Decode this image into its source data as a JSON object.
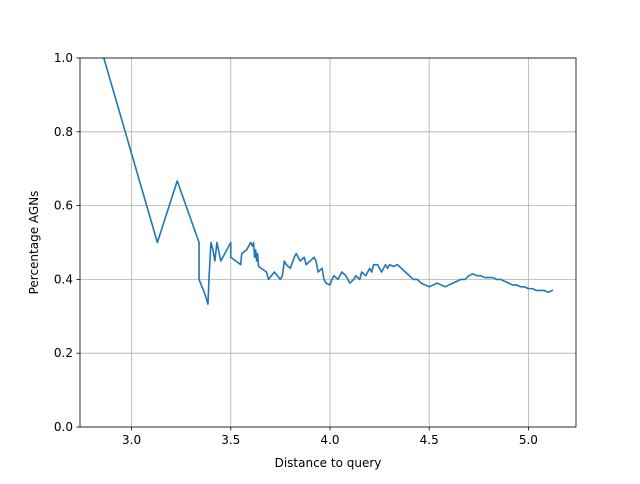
{
  "chart_data": {
    "type": "line",
    "title": "",
    "xlabel": "Distance to query",
    "ylabel": "Percentage AGNs",
    "xlim": [
      2.74,
      5.24
    ],
    "ylim": [
      0.0,
      1.0
    ],
    "grid": true,
    "xticks": [
      3.0,
      3.5,
      4.0,
      4.5,
      5.0
    ],
    "xtick_labels": [
      "3.0",
      "3.5",
      "4.0",
      "4.5",
      "5.0"
    ],
    "yticks": [
      0.0,
      0.2,
      0.4,
      0.6,
      0.8,
      1.0
    ],
    "ytick_labels": [
      "0.0",
      "0.2",
      "0.4",
      "0.6",
      "0.8",
      "1.0"
    ],
    "line_color": "#1f77b4",
    "grid_color": "#b0b0b0",
    "series": [
      {
        "x": [
          2.86,
          3.13,
          3.23,
          3.34,
          3.34,
          3.37,
          3.385,
          3.39,
          3.4,
          3.41,
          3.42,
          3.43,
          3.45,
          3.48,
          3.5,
          3.5,
          3.55,
          3.555,
          3.58,
          3.6,
          3.61,
          3.615,
          3.62,
          3.625,
          3.63,
          3.635,
          3.64,
          3.68,
          3.69,
          3.72,
          3.75,
          3.76,
          3.77,
          3.78,
          3.8,
          3.82,
          3.83,
          3.85,
          3.87,
          3.88,
          3.9,
          3.92,
          3.93,
          3.94,
          3.96,
          3.97,
          3.98,
          4.0,
          4.01,
          4.02,
          4.04,
          4.05,
          4.06,
          4.08,
          4.09,
          4.1,
          4.12,
          4.13,
          4.15,
          4.16,
          4.18,
          4.2,
          4.21,
          4.22,
          4.24,
          4.25,
          4.26,
          4.28,
          4.29,
          4.3,
          4.32,
          4.34,
          4.36,
          4.38,
          4.4,
          4.42,
          4.44,
          4.46,
          4.48,
          4.5,
          4.52,
          4.54,
          4.56,
          4.58,
          4.6,
          4.62,
          4.64,
          4.66,
          4.68,
          4.7,
          4.72,
          4.74,
          4.76,
          4.78,
          4.8,
          4.82,
          4.84,
          4.86,
          4.88,
          4.9,
          4.92,
          4.94,
          4.96,
          4.98,
          5.0,
          5.02,
          5.04,
          5.06,
          5.08,
          5.1,
          5.12
        ],
        "y": [
          1.0,
          0.5,
          0.667,
          0.5,
          0.4,
          0.36,
          0.333,
          0.4,
          0.5,
          0.48,
          0.45,
          0.5,
          0.45,
          0.48,
          0.5,
          0.46,
          0.44,
          0.47,
          0.48,
          0.5,
          0.49,
          0.5,
          0.46,
          0.48,
          0.45,
          0.47,
          0.435,
          0.42,
          0.4,
          0.42,
          0.4,
          0.41,
          0.45,
          0.44,
          0.43,
          0.46,
          0.47,
          0.45,
          0.46,
          0.44,
          0.45,
          0.46,
          0.45,
          0.42,
          0.43,
          0.4,
          0.39,
          0.385,
          0.4,
          0.41,
          0.4,
          0.41,
          0.42,
          0.41,
          0.4,
          0.39,
          0.4,
          0.41,
          0.4,
          0.42,
          0.41,
          0.43,
          0.42,
          0.44,
          0.44,
          0.43,
          0.42,
          0.44,
          0.43,
          0.44,
          0.435,
          0.44,
          0.43,
          0.42,
          0.41,
          0.4,
          0.4,
          0.39,
          0.385,
          0.38,
          0.385,
          0.39,
          0.385,
          0.38,
          0.385,
          0.39,
          0.395,
          0.4,
          0.4,
          0.41,
          0.415,
          0.41,
          0.41,
          0.405,
          0.405,
          0.405,
          0.4,
          0.4,
          0.395,
          0.39,
          0.385,
          0.385,
          0.38,
          0.38,
          0.375,
          0.375,
          0.37,
          0.37,
          0.37,
          0.365,
          0.37
        ]
      }
    ]
  }
}
